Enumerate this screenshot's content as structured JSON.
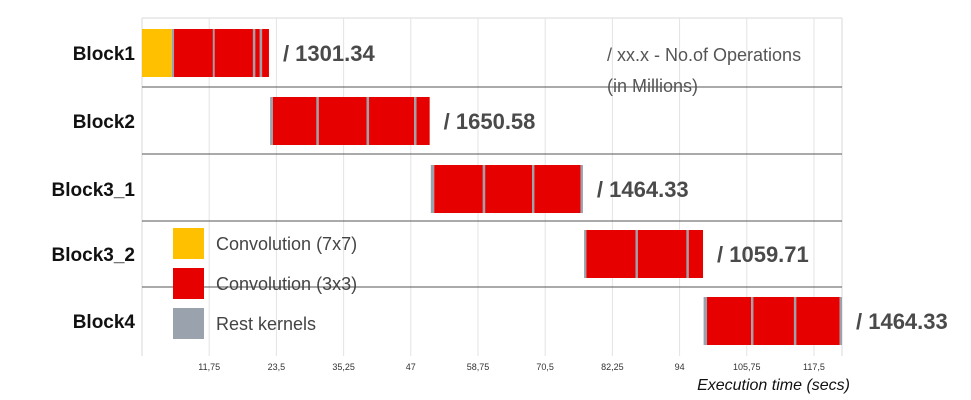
{
  "chart_data": {
    "type": "bar",
    "orientation": "horizontal-stacked-gantt",
    "rows": [
      {
        "label": "Block1",
        "ops": "/ 1301.34",
        "segments": [
          {
            "kind": "conv7x7",
            "start": 0,
            "end": 5.2
          },
          {
            "kind": "rest",
            "start": 5.2,
            "end": 5.6
          },
          {
            "kind": "conv3x3",
            "start": 5.6,
            "end": 12.4
          },
          {
            "kind": "rest",
            "start": 12.4,
            "end": 12.7
          },
          {
            "kind": "conv3x3",
            "start": 12.7,
            "end": 19.4
          },
          {
            "kind": "rest",
            "start": 19.4,
            "end": 19.8
          },
          {
            "kind": "conv3x3",
            "start": 19.8,
            "end": 20.6
          },
          {
            "kind": "rest",
            "start": 20.6,
            "end": 21.0
          },
          {
            "kind": "conv3x3",
            "start": 21.0,
            "end": 22.2
          }
        ]
      },
      {
        "label": "Block2",
        "ops": "/ 1650.58",
        "segments": [
          {
            "kind": "rest",
            "start": 22.4,
            "end": 22.9
          },
          {
            "kind": "conv3x3",
            "start": 22.9,
            "end": 30.5
          },
          {
            "kind": "rest",
            "start": 30.5,
            "end": 30.9
          },
          {
            "kind": "conv3x3",
            "start": 30.9,
            "end": 39.3
          },
          {
            "kind": "rest",
            "start": 39.3,
            "end": 39.7
          },
          {
            "kind": "conv3x3",
            "start": 39.7,
            "end": 47.6
          },
          {
            "kind": "rest",
            "start": 47.6,
            "end": 48.0
          },
          {
            "kind": "conv3x3",
            "start": 48.0,
            "end": 50.3
          }
        ]
      },
      {
        "label": "Block3_1",
        "ops": "/ 1464.33",
        "segments": [
          {
            "kind": "rest",
            "start": 50.5,
            "end": 51.1
          },
          {
            "kind": "conv3x3",
            "start": 51.1,
            "end": 59.6
          },
          {
            "kind": "rest",
            "start": 59.6,
            "end": 60.0
          },
          {
            "kind": "conv3x3",
            "start": 60.0,
            "end": 68.2
          },
          {
            "kind": "rest",
            "start": 68.2,
            "end": 68.6
          },
          {
            "kind": "conv3x3",
            "start": 68.6,
            "end": 76.7
          },
          {
            "kind": "rest",
            "start": 76.7,
            "end": 77.1
          }
        ]
      },
      {
        "label": "Block3_2",
        "ops": "/ 1059.71",
        "segments": [
          {
            "kind": "rest",
            "start": 77.3,
            "end": 77.7
          },
          {
            "kind": "conv3x3",
            "start": 77.7,
            "end": 86.3
          },
          {
            "kind": "rest",
            "start": 86.3,
            "end": 86.7
          },
          {
            "kind": "conv3x3",
            "start": 86.7,
            "end": 95.2
          },
          {
            "kind": "rest",
            "start": 95.2,
            "end": 95.6
          },
          {
            "kind": "conv3x3",
            "start": 95.6,
            "end": 98.1
          }
        ]
      },
      {
        "label": "Block4",
        "ops": "/ 1464.33",
        "segments": [
          {
            "kind": "rest",
            "start": 98.2,
            "end": 98.8
          },
          {
            "kind": "conv3x3",
            "start": 98.8,
            "end": 106.5
          },
          {
            "kind": "rest",
            "start": 106.5,
            "end": 106.9
          },
          {
            "kind": "conv3x3",
            "start": 106.9,
            "end": 114.0
          },
          {
            "kind": "rest",
            "start": 114.0,
            "end": 114.4
          },
          {
            "kind": "conv3x3",
            "start": 114.4,
            "end": 122.0
          },
          {
            "kind": "rest",
            "start": 122.0,
            "end": 122.4
          }
        ]
      }
    ],
    "x_ticks": [
      "11,75",
      "23,5",
      "35,25",
      "47",
      "58,75",
      "70,5",
      "82,25",
      "94",
      "105,75",
      "117,5"
    ],
    "x_tick_values": [
      11.75,
      23.5,
      35.25,
      47,
      58.75,
      70.5,
      82.25,
      94,
      105.75,
      117.5
    ],
    "xlim": [
      0,
      122.4
    ],
    "xlabel": "Execution time (secs)",
    "note_line1": "/ xx.x -  No.of Operations",
    "note_line2": "(in Millions)",
    "grid": true,
    "legend_placement": "bottom-left",
    "legend": [
      {
        "key": "conv7x7",
        "label": "Convolution (7x7)",
        "color": "#FFC000"
      },
      {
        "key": "conv3x3",
        "label": "Convolution (3x3)",
        "color": "#E60000"
      },
      {
        "key": "rest",
        "label": "Rest kernels",
        "color": "#9AA3AD"
      }
    ]
  }
}
